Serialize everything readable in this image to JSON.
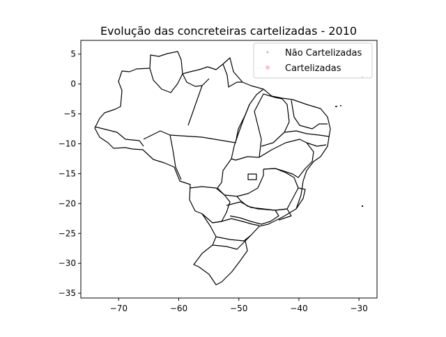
{
  "chart_data": {
    "type": "scatter",
    "title": "Evolução das concreteiras cartelizadas - 2010",
    "xlabel": "",
    "ylabel": "",
    "xlim": [
      -76.3,
      -27.0
    ],
    "ylim": [
      -35.8,
      7.3
    ],
    "x_ticks": [
      -70,
      -60,
      -50,
      -40,
      -30
    ],
    "y_ticks": [
      5,
      0,
      -5,
      -10,
      -15,
      -20,
      -25,
      -30,
      -35
    ],
    "x_tick_labels": [
      "−70",
      "−60",
      "−50",
      "−40",
      "−30"
    ],
    "y_tick_labels": [
      "5",
      "0",
      "−5",
      "−10",
      "−15",
      "−20",
      "−25",
      "−30",
      "−35"
    ],
    "grid": false,
    "legend_position": "top-right",
    "series": [
      {
        "name": "Não Cartelizadas",
        "color": "#8080ff",
        "marker": "point",
        "values": []
      },
      {
        "name": "Cartelizadas",
        "color": "#ff9999",
        "marker": "circle",
        "values": []
      }
    ],
    "basemap": "Brazil state boundaries"
  },
  "colors": {
    "outline": "#000000",
    "background": "#ffffff"
  }
}
